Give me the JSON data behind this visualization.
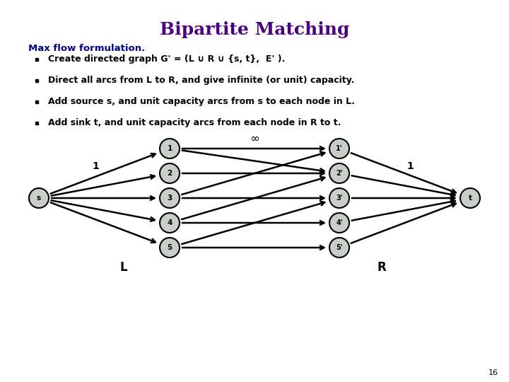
{
  "title": "Bipartite Matching",
  "title_color": "#4B0082",
  "title_fontsize": 18,
  "subtitle": "Max flow formulation.",
  "subtitle_color": "#00008B",
  "subtitle_fontsize": 9.5,
  "bullets": [
    "Create directed graph G' = (L ∪ R ∪ {s, t},  E' ).",
    "Direct all arcs from L to R, and give infinite (or unit) capacity.",
    "Add source s, and unit capacity arcs from s to each node in L.",
    "Add sink t, and unit capacity arcs from each node in R to t."
  ],
  "bullet_fontsize": 9,
  "bullet_color": "#000000",
  "background_color": "#ffffff",
  "node_color": "#c8cec8",
  "node_edge_color": "#000000",
  "L_nodes": [
    "1",
    "2",
    "3",
    "4",
    "5"
  ],
  "R_nodes": [
    "1'",
    "2'",
    "3'",
    "4'",
    "5'"
  ],
  "s_node": "s",
  "t_node": "t",
  "edges_LR": [
    [
      "1",
      "1'"
    ],
    [
      "1",
      "2'"
    ],
    [
      "2",
      "2'"
    ],
    [
      "3",
      "3'"
    ],
    [
      "3",
      "1'"
    ],
    [
      "4",
      "4'"
    ],
    [
      "4",
      "2'"
    ],
    [
      "5",
      "5'"
    ],
    [
      "5",
      "3'"
    ]
  ],
  "page_num": "16"
}
